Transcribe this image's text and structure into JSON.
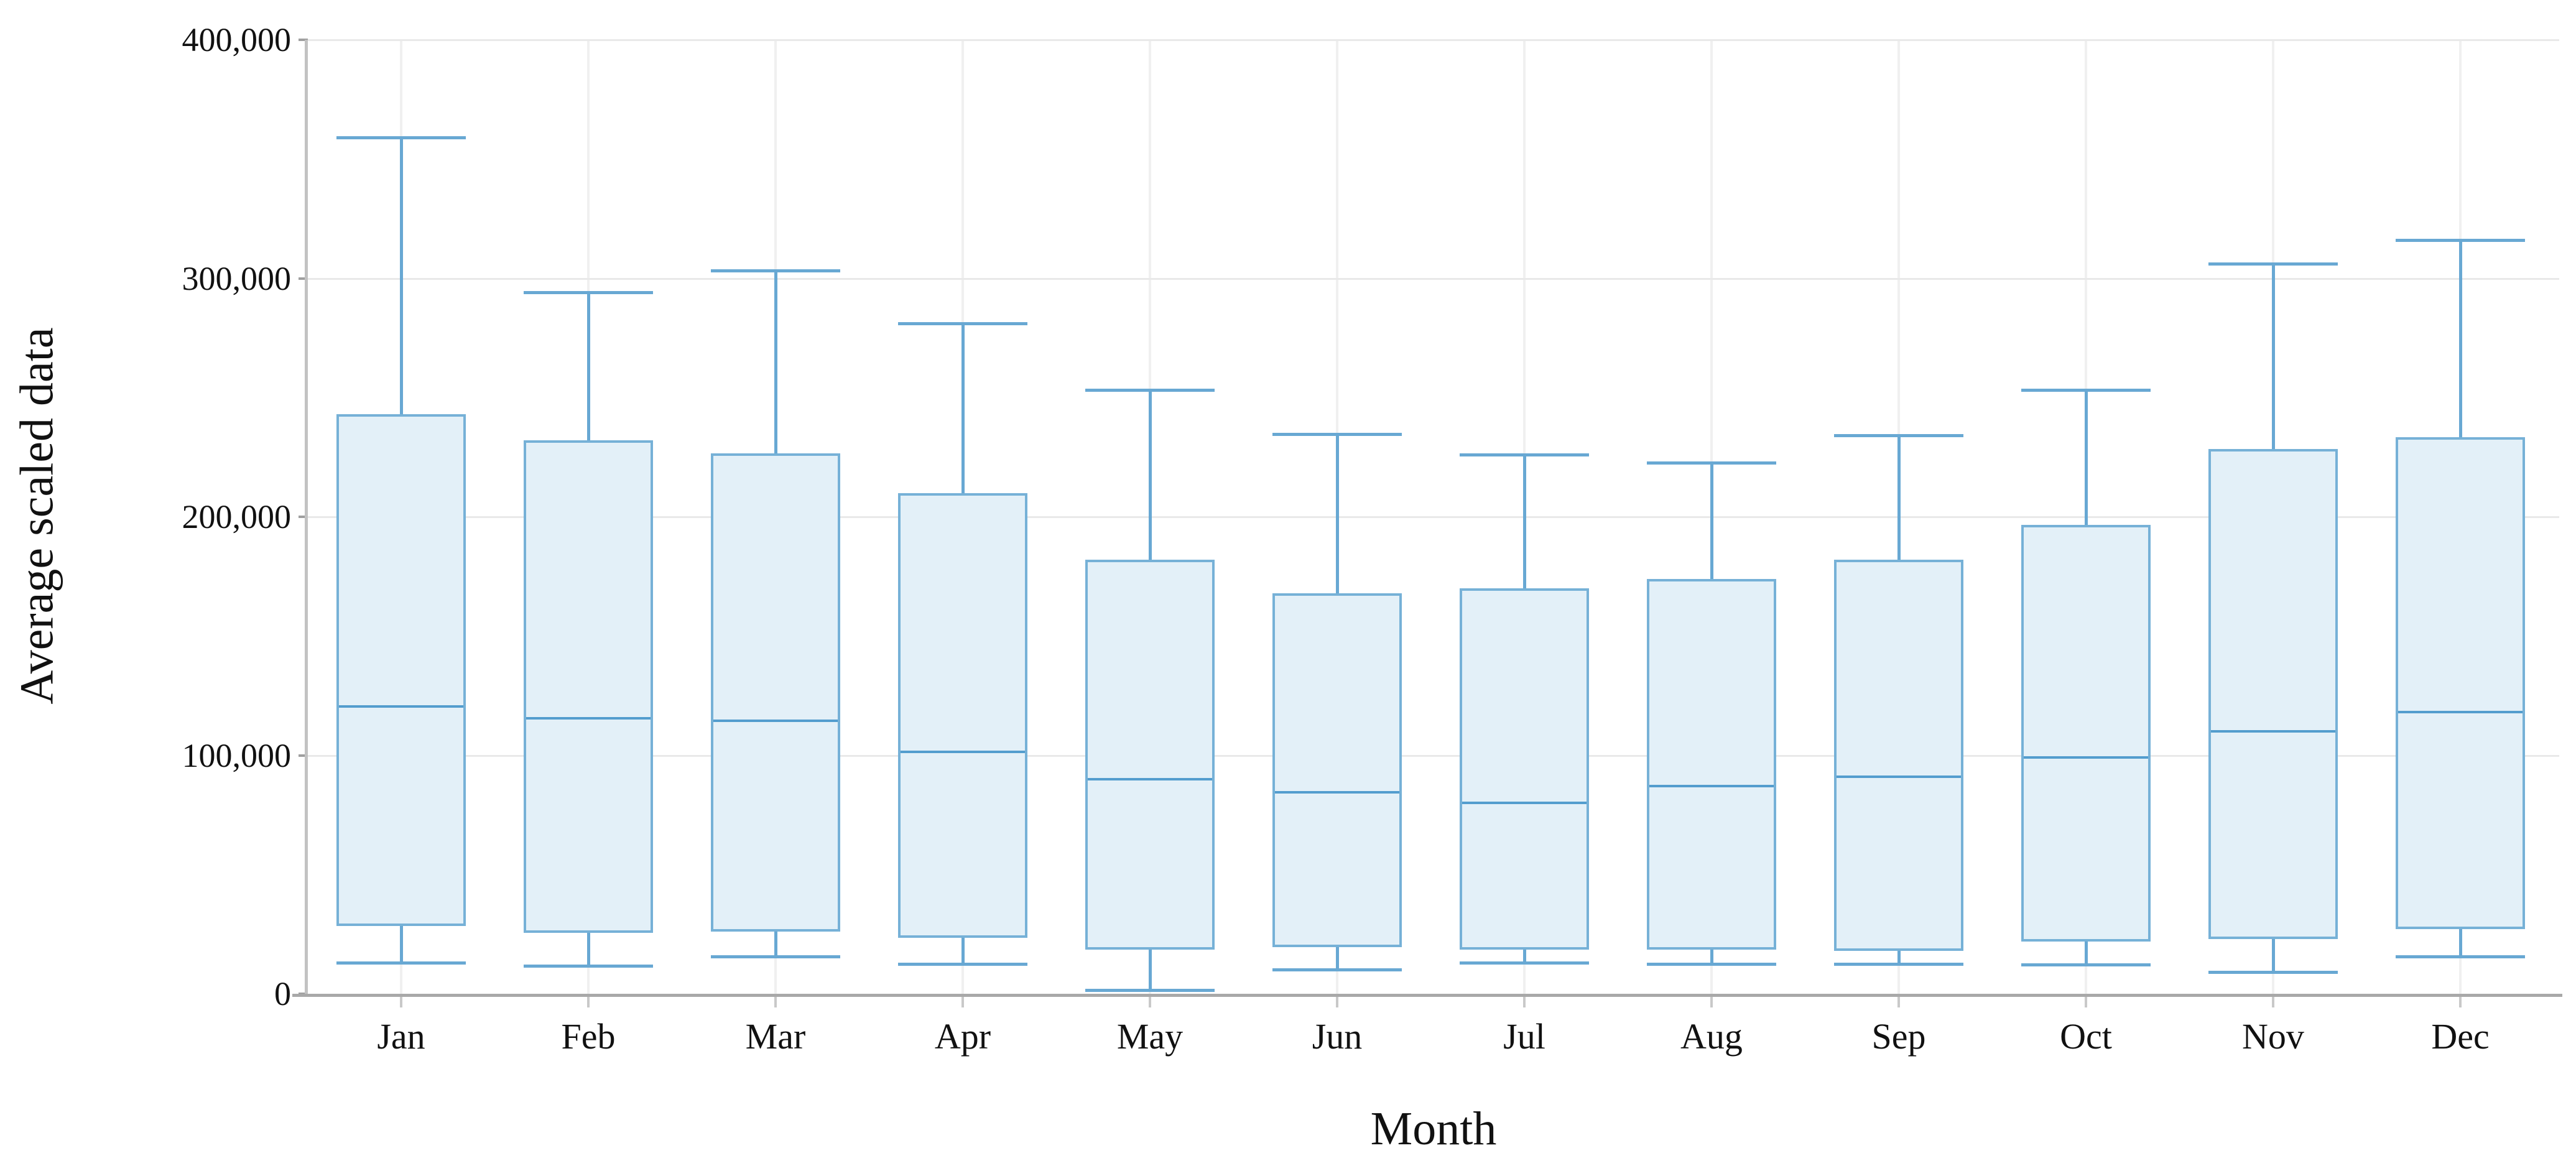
{
  "figure": {
    "y_axis_title": "Average scaled data",
    "x_axis_title": "Month"
  },
  "y_axis": {
    "range": [
      0,
      400000
    ],
    "ticks": [
      {
        "value": 0,
        "label": "0"
      },
      {
        "value": 100000,
        "label": "100,000"
      },
      {
        "value": 200000,
        "label": "200,000"
      },
      {
        "value": 300000,
        "label": "300,000"
      },
      {
        "value": 400000,
        "label": "400,000"
      }
    ]
  },
  "chart_data": {
    "type": "boxplot",
    "title": "",
    "xlabel": "Month",
    "ylabel": "Average scaled data",
    "ylim": [
      0,
      400000
    ],
    "grid": true,
    "y_tick_labels": [
      "0",
      "100,000",
      "200,000",
      "300,000",
      "400,000"
    ],
    "categories": [
      "Jan",
      "Feb",
      "Mar",
      "Apr",
      "May",
      "Jun",
      "Jul",
      "Aug",
      "Sep",
      "Oct",
      "Nov",
      "Dec"
    ],
    "boxes": [
      {
        "month": "Jan",
        "whisker_low": 13000,
        "q1": 28500,
        "median": 120500,
        "q3": 243000,
        "whisker_high": 359000
      },
      {
        "month": "Feb",
        "whisker_low": 11500,
        "q1": 25500,
        "median": 115500,
        "q3": 232000,
        "whisker_high": 294000
      },
      {
        "month": "Mar",
        "whisker_low": 15500,
        "q1": 26000,
        "median": 114500,
        "q3": 226500,
        "whisker_high": 303000
      },
      {
        "month": "Apr",
        "whisker_low": 12500,
        "q1": 23500,
        "median": 101500,
        "q3": 210000,
        "whisker_high": 281000
      },
      {
        "month": "May",
        "whisker_low": 1500,
        "q1": 18500,
        "median": 90000,
        "q3": 182000,
        "whisker_high": 253000
      },
      {
        "month": "Jun",
        "whisker_low": 10000,
        "q1": 19500,
        "median": 84500,
        "q3": 168000,
        "whisker_high": 234500
      },
      {
        "month": "Jul",
        "whisker_low": 13000,
        "q1": 18500,
        "median": 80000,
        "q3": 170000,
        "whisker_high": 226000
      },
      {
        "month": "Aug",
        "whisker_low": 12500,
        "q1": 18500,
        "median": 87000,
        "q3": 174000,
        "whisker_high": 222500
      },
      {
        "month": "Sep",
        "whisker_low": 12500,
        "q1": 18000,
        "median": 91000,
        "q3": 182000,
        "whisker_high": 234000
      },
      {
        "month": "Oct",
        "whisker_low": 12000,
        "q1": 22000,
        "median": 99000,
        "q3": 196500,
        "whisker_high": 253000
      },
      {
        "month": "Nov",
        "whisker_low": 9000,
        "q1": 23000,
        "median": 110000,
        "q3": 228500,
        "whisker_high": 306000
      },
      {
        "month": "Dec",
        "whisker_low": 15500,
        "q1": 27000,
        "median": 118000,
        "q3": 233500,
        "whisker_high": 316000
      }
    ]
  },
  "colors": {
    "box_fill": "#e3f0f8",
    "box_border": "#76b1d7",
    "whisker": "#68a8d3",
    "median": "#539dce",
    "gridline": "#e9e9e9",
    "axis": "#a9a9a9",
    "text": "#111111"
  }
}
